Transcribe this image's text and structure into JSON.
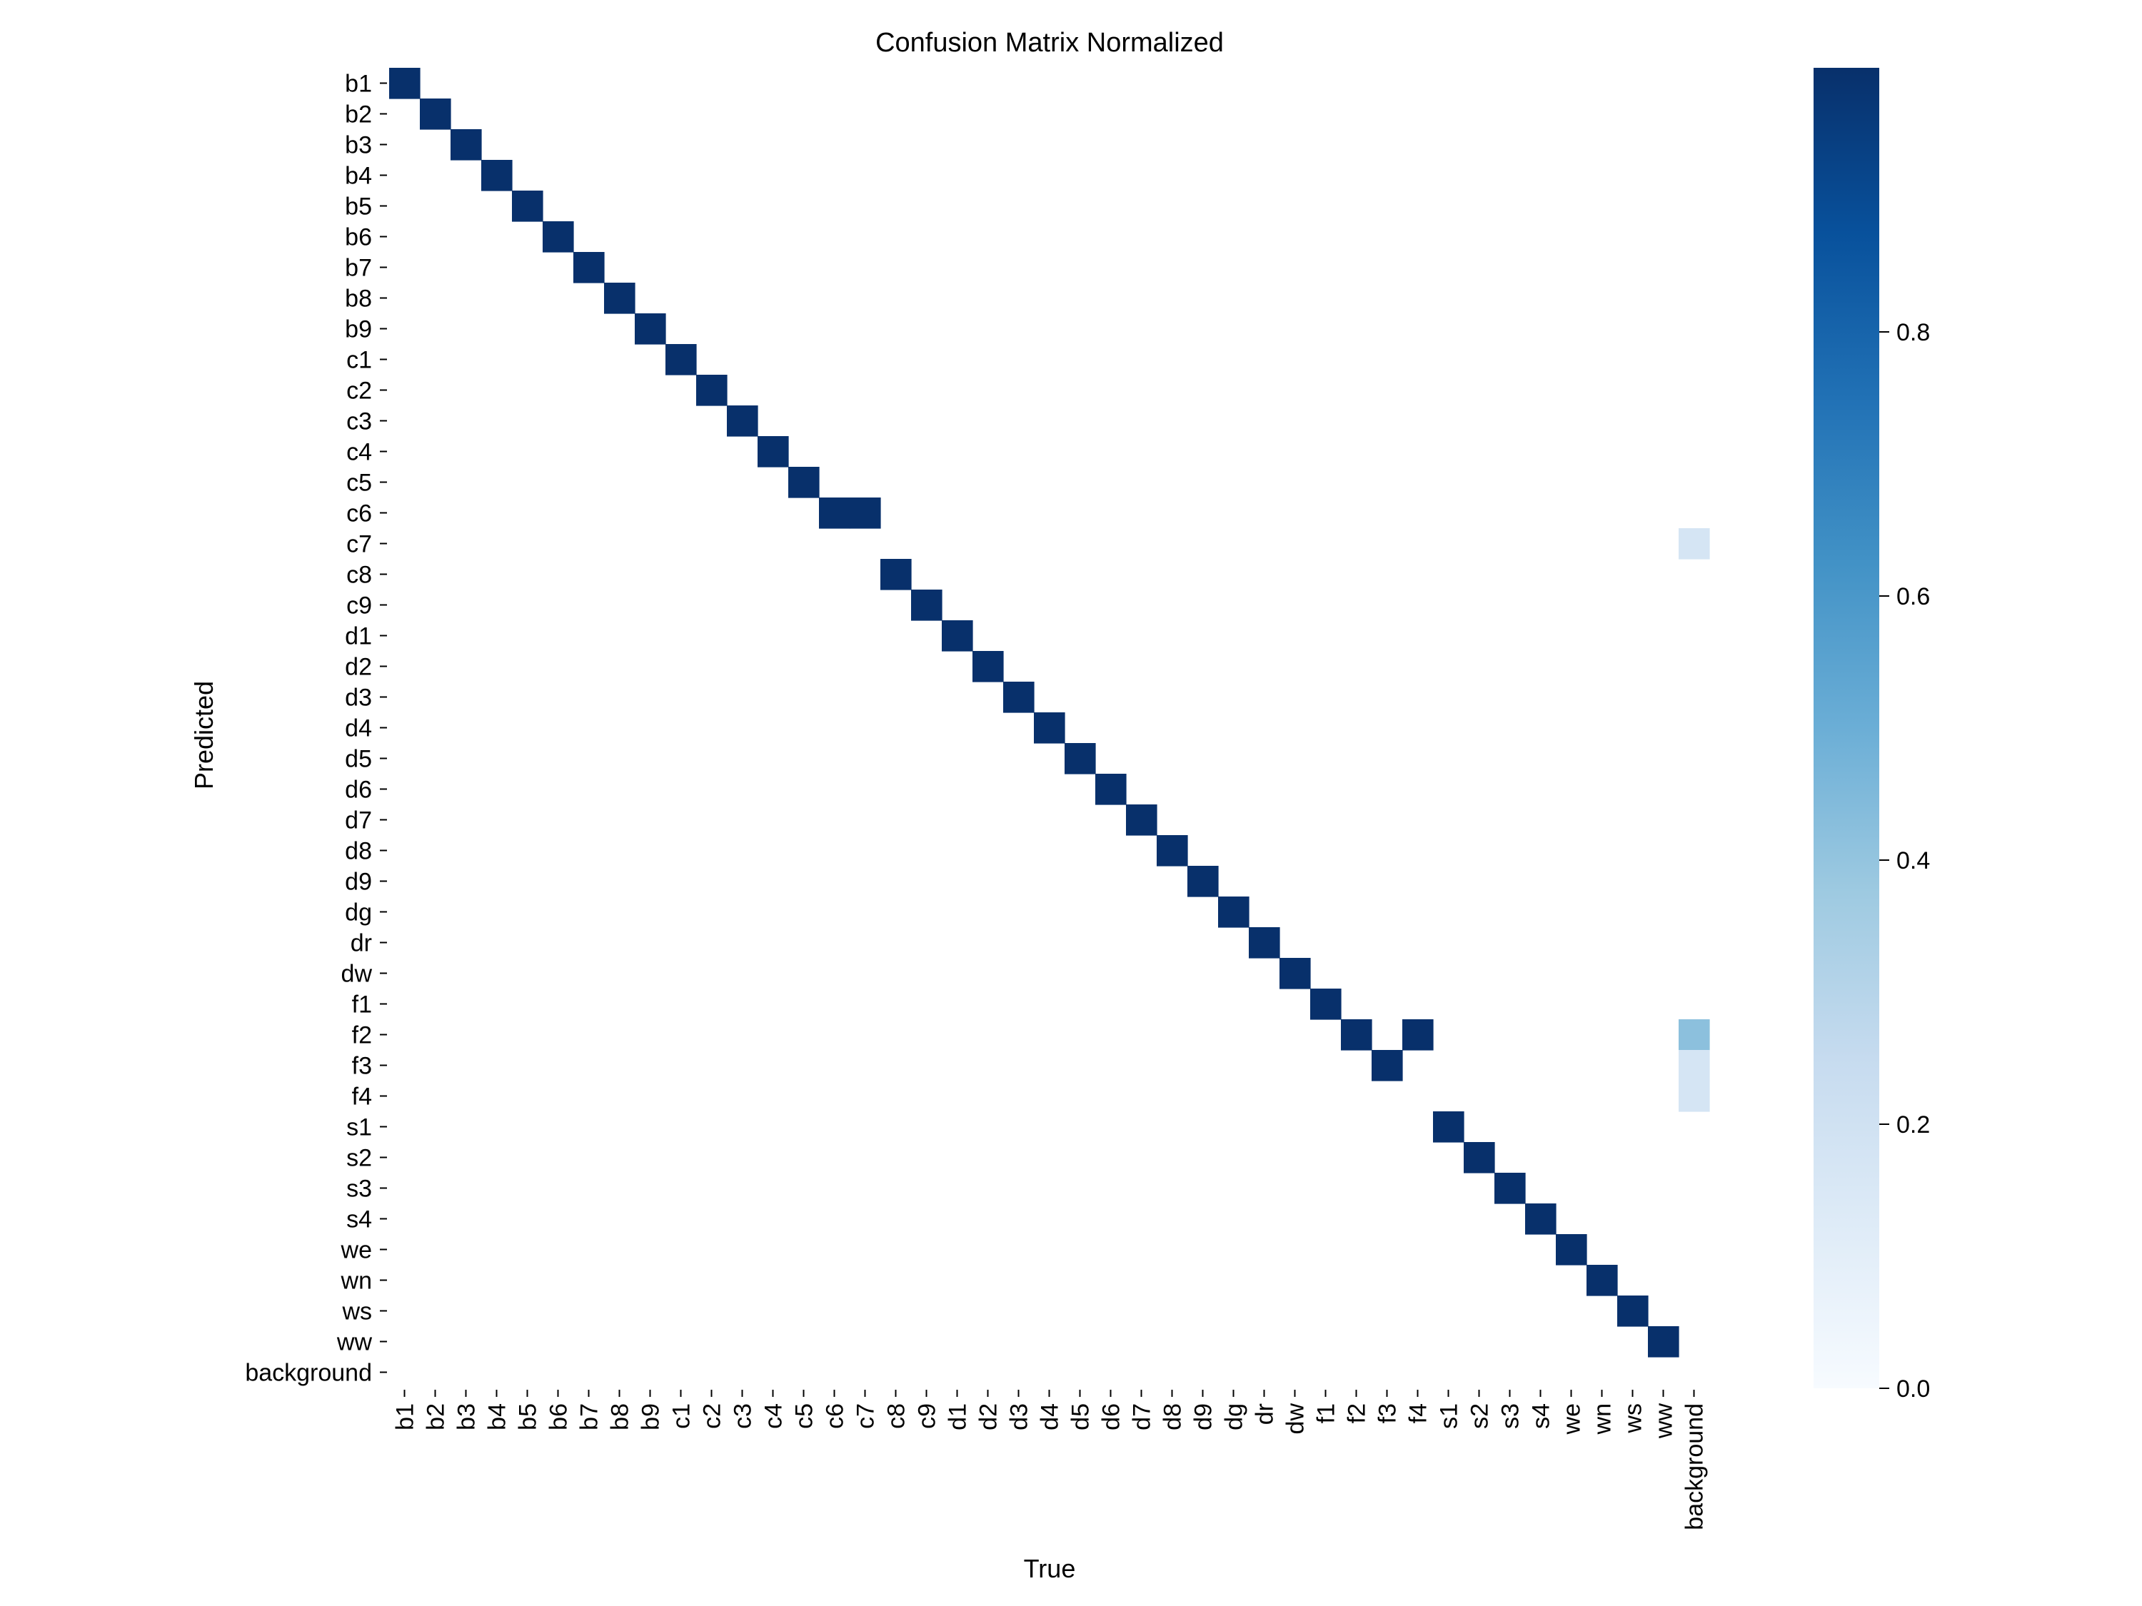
{
  "chart_data": {
    "type": "heatmap",
    "title": "Confusion Matrix Normalized",
    "xlabel": "True",
    "ylabel": "Predicted",
    "x_categories": [
      "b1",
      "b2",
      "b3",
      "b4",
      "b5",
      "b6",
      "b7",
      "b8",
      "b9",
      "c1",
      "c2",
      "c3",
      "c4",
      "c5",
      "c6",
      "c7",
      "c8",
      "c9",
      "d1",
      "d2",
      "d3",
      "d4",
      "d5",
      "d6",
      "d7",
      "d8",
      "d9",
      "dg",
      "dr",
      "dw",
      "f1",
      "f2",
      "f3",
      "f4",
      "s1",
      "s2",
      "s3",
      "s4",
      "we",
      "wn",
      "ws",
      "ww",
      "background"
    ],
    "y_categories": [
      "b1",
      "b2",
      "b3",
      "b4",
      "b5",
      "b6",
      "b7",
      "b8",
      "b9",
      "c1",
      "c2",
      "c3",
      "c4",
      "c5",
      "c6",
      "c7",
      "c8",
      "c9",
      "d1",
      "d2",
      "d3",
      "d4",
      "d5",
      "d6",
      "d7",
      "d8",
      "d9",
      "dg",
      "dr",
      "dw",
      "f1",
      "f2",
      "f3",
      "f4",
      "s1",
      "s2",
      "s3",
      "s4",
      "we",
      "wn",
      "ws",
      "ww",
      "background"
    ],
    "cells": [
      {
        "x": "b1",
        "y": "b1",
        "value": 1.0
      },
      {
        "x": "b2",
        "y": "b2",
        "value": 1.0
      },
      {
        "x": "b3",
        "y": "b3",
        "value": 1.0
      },
      {
        "x": "b4",
        "y": "b4",
        "value": 1.0
      },
      {
        "x": "b5",
        "y": "b5",
        "value": 1.0
      },
      {
        "x": "b6",
        "y": "b6",
        "value": 1.0
      },
      {
        "x": "b7",
        "y": "b7",
        "value": 1.0
      },
      {
        "x": "b8",
        "y": "b8",
        "value": 1.0
      },
      {
        "x": "b9",
        "y": "b9",
        "value": 1.0
      },
      {
        "x": "c1",
        "y": "c1",
        "value": 1.0
      },
      {
        "x": "c2",
        "y": "c2",
        "value": 1.0
      },
      {
        "x": "c3",
        "y": "c3",
        "value": 1.0
      },
      {
        "x": "c4",
        "y": "c4",
        "value": 1.0
      },
      {
        "x": "c5",
        "y": "c5",
        "value": 1.0
      },
      {
        "x": "c6",
        "y": "c6",
        "value": 1.0
      },
      {
        "x": "c7",
        "y": "c6",
        "value": 1.0
      },
      {
        "x": "c8",
        "y": "c8",
        "value": 1.0
      },
      {
        "x": "c9",
        "y": "c9",
        "value": 1.0
      },
      {
        "x": "d1",
        "y": "d1",
        "value": 1.0
      },
      {
        "x": "d2",
        "y": "d2",
        "value": 1.0
      },
      {
        "x": "d3",
        "y": "d3",
        "value": 1.0
      },
      {
        "x": "d4",
        "y": "d4",
        "value": 1.0
      },
      {
        "x": "d5",
        "y": "d5",
        "value": 1.0
      },
      {
        "x": "d6",
        "y": "d6",
        "value": 1.0
      },
      {
        "x": "d7",
        "y": "d7",
        "value": 1.0
      },
      {
        "x": "d8",
        "y": "d8",
        "value": 1.0
      },
      {
        "x": "d9",
        "y": "d9",
        "value": 1.0
      },
      {
        "x": "dg",
        "y": "dg",
        "value": 1.0
      },
      {
        "x": "dr",
        "y": "dr",
        "value": 1.0
      },
      {
        "x": "dw",
        "y": "dw",
        "value": 1.0
      },
      {
        "x": "f1",
        "y": "f1",
        "value": 1.0
      },
      {
        "x": "f2",
        "y": "f2",
        "value": 1.0
      },
      {
        "x": "f4",
        "y": "f2",
        "value": 1.0
      },
      {
        "x": "f3",
        "y": "f3",
        "value": 1.0
      },
      {
        "x": "s1",
        "y": "s1",
        "value": 1.0
      },
      {
        "x": "s2",
        "y": "s2",
        "value": 1.0
      },
      {
        "x": "s3",
        "y": "s3",
        "value": 1.0
      },
      {
        "x": "s4",
        "y": "s4",
        "value": 1.0
      },
      {
        "x": "we",
        "y": "we",
        "value": 1.0
      },
      {
        "x": "wn",
        "y": "wn",
        "value": 1.0
      },
      {
        "x": "ws",
        "y": "ws",
        "value": 1.0
      },
      {
        "x": "ww",
        "y": "ww",
        "value": 1.0
      },
      {
        "x": "background",
        "y": "c7",
        "value": 0.17
      },
      {
        "x": "background",
        "y": "f2",
        "value": 0.42
      },
      {
        "x": "background",
        "y": "f3",
        "value": 0.17
      },
      {
        "x": "background",
        "y": "f4",
        "value": 0.17
      }
    ],
    "colormap": "Blues",
    "colorbar": {
      "range": [
        0,
        1
      ],
      "ticks": [
        0.0,
        0.2,
        0.4,
        0.6,
        0.8
      ],
      "tick_labels": [
        "0.0",
        "0.2",
        "0.4",
        "0.6",
        "0.8"
      ]
    },
    "grid": false,
    "legend": "none"
  }
}
